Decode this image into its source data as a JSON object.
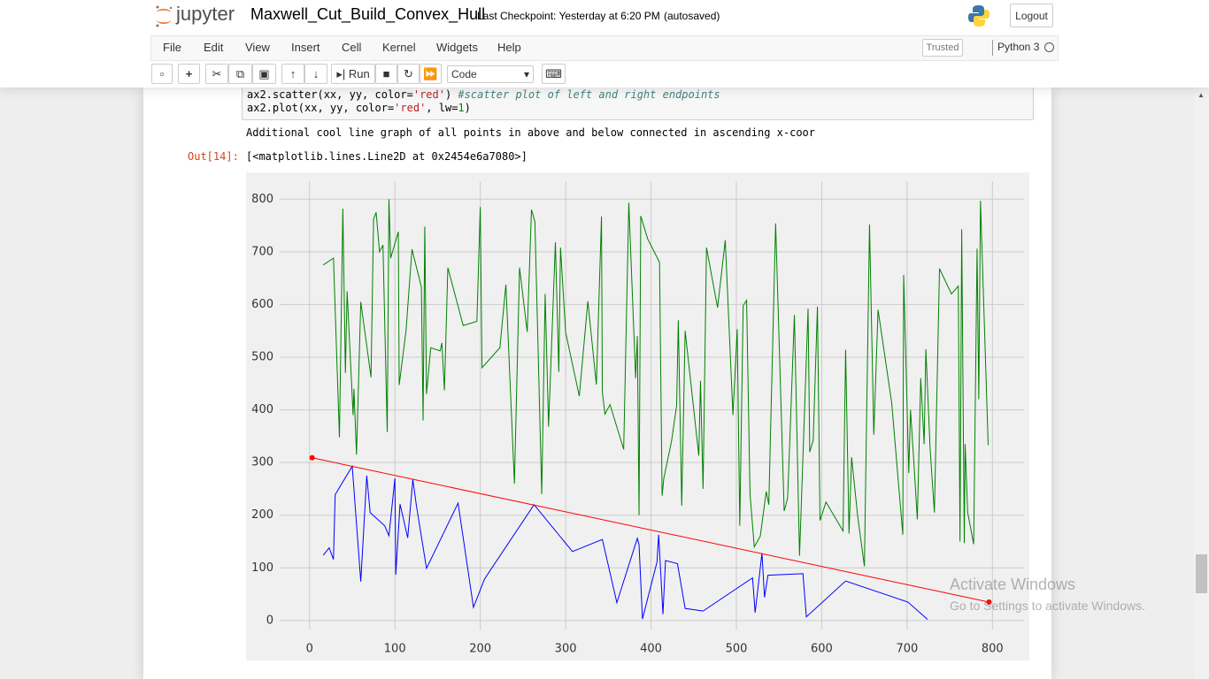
{
  "header": {
    "logo": "jupyter",
    "notebook_name": "Maxwell_Cut_Build_Convex_Hull",
    "checkpoint": "Last Checkpoint: Yesterday at 6:20 PM",
    "autosaved": "(autosaved)",
    "logout": "Logout"
  },
  "menu": {
    "items": [
      "File",
      "Edit",
      "View",
      "Insert",
      "Cell",
      "Kernel",
      "Widgets",
      "Help"
    ],
    "trusted": "Trusted",
    "kernel": "Python 3"
  },
  "toolbar": {
    "run": "Run",
    "cell_type": "Code"
  },
  "cell": {
    "line1": [
      "ax2.scatter(xx, yy, color=",
      "'red'",
      ") ",
      "#scatter plot of left and right endpoints"
    ],
    "line2": [
      "ax2.plot(xx, yy, color=",
      "'red'",
      ", lw=",
      "1",
      ")"
    ]
  },
  "markdown": "Additional cool line graph of all points in above and below connected in ascending x-coor",
  "output": {
    "prompt": "Out[14]:",
    "text": "[<matplotlib.lines.Line2D at 0x2454e6a7080>]"
  },
  "watermark": {
    "title": "Activate Windows",
    "subtitle": "Go to Settings to activate Windows."
  },
  "chart_data": {
    "type": "line",
    "background": "#f0f0f0",
    "grid": true,
    "xlim": [
      -35,
      837
    ],
    "ylim": [
      -17,
      834
    ],
    "xticks": [
      0,
      100,
      200,
      300,
      400,
      500,
      600,
      700,
      800
    ],
    "yticks": [
      0,
      100,
      200,
      300,
      400,
      500,
      600,
      700,
      800
    ],
    "series": [
      {
        "color": "green",
        "x": [
          16,
          28,
          35,
          39,
          42,
          44,
          51,
          52,
          55,
          60,
          72,
          75,
          78,
          82,
          86,
          91,
          93,
          95,
          104,
          105,
          113,
          120,
          131,
          133,
          135,
          137,
          142,
          153,
          155,
          158,
          162,
          180,
          196,
          200,
          202,
          223,
          230,
          240,
          246,
          255,
          260,
          264,
          272,
          276,
          280,
          288,
          292,
          294,
          300,
          316,
          326,
          336,
          342,
          343,
          346,
          352,
          368,
          374,
          382,
          384,
          386,
          388,
          396,
          410,
          413,
          415,
          424,
          430,
          432,
          436,
          440,
          456,
          458,
          461,
          465,
          478,
          487,
          496,
          501,
          504,
          508,
          512,
          516,
          521,
          528,
          535,
          538,
          546,
          556,
          560,
          562,
          568,
          574,
          584,
          586,
          590,
          595,
          598,
          605,
          625,
          628,
          632,
          635,
          642,
          650,
          656,
          661,
          666,
          682,
          695,
          696,
          702,
          704,
          708,
          712,
          716,
          720,
          722,
          727,
          732,
          738,
          752,
          760,
          762,
          764,
          767,
          768,
          771,
          778,
          782,
          784,
          786,
          795
        ],
        "values": [
          675,
          688,
          348,
          782,
          470,
          625,
          390,
          440,
          315,
          605,
          462,
          762,
          775,
          700,
          713,
          358,
          800,
          688,
          738,
          447,
          550,
          705,
          633,
          380,
          748,
          430,
          518,
          512,
          527,
          437,
          670,
          560,
          568,
          785,
          480,
          518,
          638,
          260,
          670,
          548,
          780,
          757,
          240,
          620,
          368,
          718,
          472,
          708,
          547,
          426,
          606,
          448,
          767,
          434,
          392,
          410,
          325,
          793,
          460,
          540,
          200,
          768,
          725,
          680,
          237,
          270,
          340,
          408,
          570,
          218,
          550,
          313,
          455,
          250,
          708,
          594,
          722,
          390,
          553,
          180,
          598,
          608,
          240,
          140,
          160,
          245,
          220,
          754,
          208,
          232,
          315,
          580,
          123,
          592,
          320,
          342,
          596,
          190,
          225,
          170,
          514,
          165,
          310,
          200,
          103,
          752,
          353,
          590,
          413,
          163,
          656,
          280,
          400,
          300,
          192,
          460,
          335,
          515,
          326,
          205,
          668,
          620,
          635,
          150,
          743,
          147,
          335,
          205,
          145,
          706,
          420,
          797,
          333
        ]
      },
      {
        "color": "blue",
        "x": [
          16,
          23,
          28,
          30,
          50,
          60,
          67,
          71,
          88,
          93,
          100,
          101,
          106,
          115,
          121,
          125,
          137,
          174,
          192,
          205,
          263,
          308,
          343,
          360,
          384,
          386,
          390,
          407,
          409,
          414,
          417,
          431,
          440,
          461,
          519,
          522,
          530,
          533,
          537,
          578,
          582,
          628,
          701,
          724
        ],
        "values": [
          124,
          138,
          116,
          239,
          293,
          74,
          275,
          205,
          180,
          161,
          270,
          87,
          221,
          157,
          268,
          220,
          99,
          223,
          25,
          79,
          220,
          131,
          154,
          34,
          156,
          144,
          3,
          111,
          163,
          12,
          114,
          108,
          23,
          18,
          81,
          15,
          128,
          44,
          86,
          89,
          7,
          75,
          35,
          2
        ]
      },
      {
        "color": "red",
        "markers": true,
        "x": [
          3,
          796
        ],
        "values": [
          309,
          35
        ]
      }
    ]
  }
}
